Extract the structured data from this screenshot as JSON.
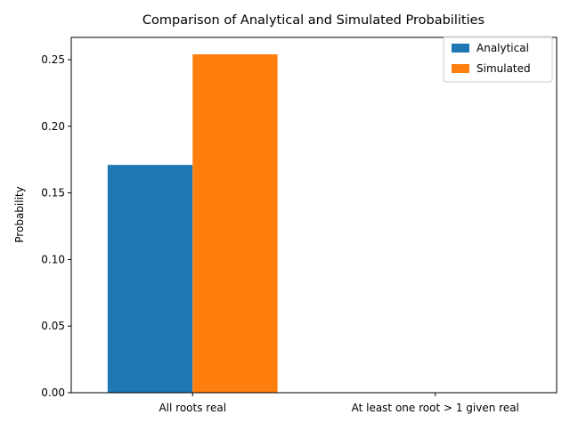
{
  "chart_data": {
    "type": "bar",
    "title": "Comparison of Analytical and Simulated Probabilities",
    "xlabel": "",
    "ylabel": "Probability",
    "categories": [
      "All roots real",
      "At least one root > 1 given real"
    ],
    "series": [
      {
        "name": "Analytical",
        "values": [
          0.171,
          0.0
        ],
        "color": "#1f77b4"
      },
      {
        "name": "Simulated",
        "values": [
          0.254,
          0.0
        ],
        "color": "#ff7f0e"
      }
    ],
    "ylim": [
      0,
      0.2667
    ],
    "yticks": [
      0.0,
      0.05,
      0.1,
      0.15,
      0.2,
      0.25
    ],
    "ytick_labels": [
      "0.00",
      "0.05",
      "0.10",
      "0.15",
      "0.20",
      "0.25"
    ],
    "grid": false,
    "legend_position": "top-right"
  }
}
